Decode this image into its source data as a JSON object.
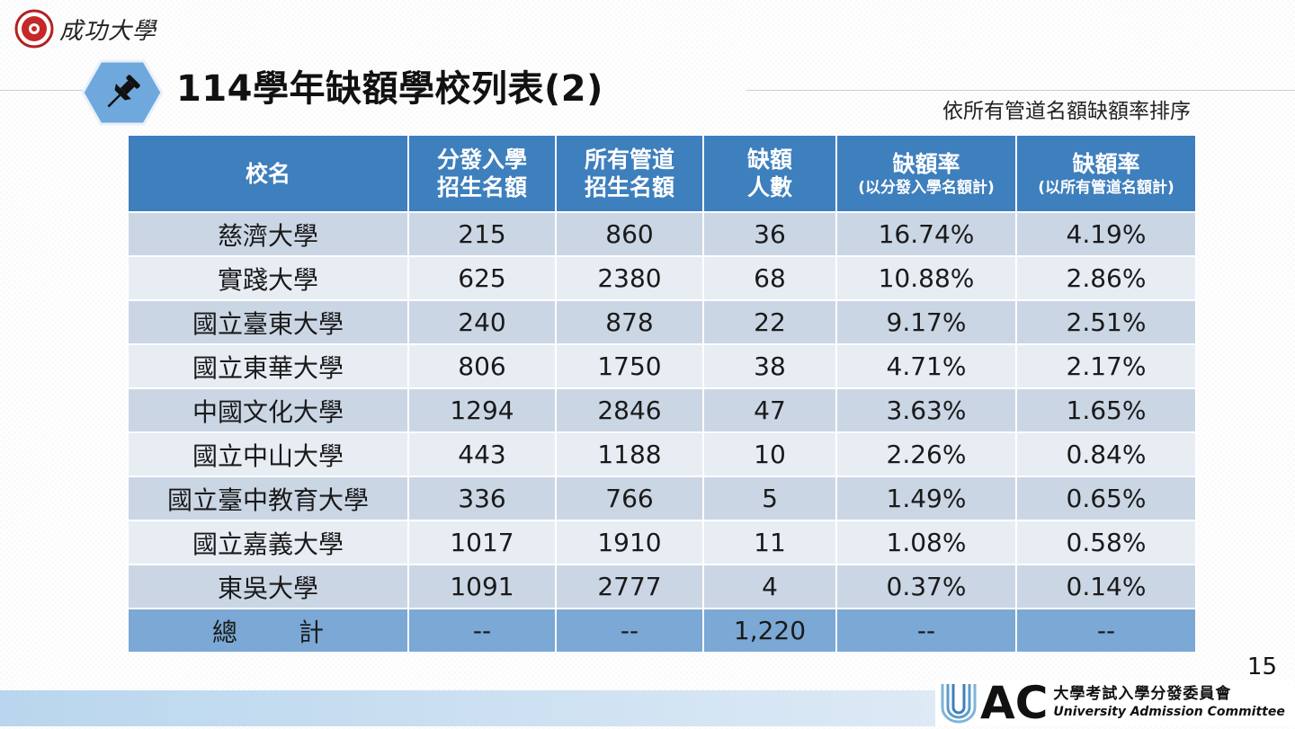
{
  "header": {
    "logo_text": "成功大學",
    "title": "114學年缺額學校列表(2)",
    "subtitle": "依所有管道名額缺額率排序"
  },
  "table": {
    "headers": [
      {
        "line1": "校名",
        "line2": ""
      },
      {
        "line1": "分發入學",
        "line2": "招生名額"
      },
      {
        "line1": "所有管道",
        "line2": "招生名額"
      },
      {
        "line1": "缺額",
        "line2": "人數"
      },
      {
        "line1": "缺額率",
        "line2": "(以分發入學名額計)"
      },
      {
        "line1": "缺額率",
        "line2": "(以所有管道名額計)"
      }
    ],
    "rows": [
      [
        "慈濟大學",
        "215",
        "860",
        "36",
        "16.74%",
        "4.19%"
      ],
      [
        "實踐大學",
        "625",
        "2380",
        "68",
        "10.88%",
        "2.86%"
      ],
      [
        "國立臺東大學",
        "240",
        "878",
        "22",
        "9.17%",
        "2.51%"
      ],
      [
        "國立東華大學",
        "806",
        "1750",
        "38",
        "4.71%",
        "2.17%"
      ],
      [
        "中國文化大學",
        "1294",
        "2846",
        "47",
        "3.63%",
        "1.65%"
      ],
      [
        "國立中山大學",
        "443",
        "1188",
        "10",
        "2.26%",
        "0.84%"
      ],
      [
        "國立臺中教育大學",
        "336",
        "766",
        "5",
        "1.49%",
        "0.65%"
      ],
      [
        "國立嘉義大學",
        "1017",
        "1910",
        "11",
        "1.08%",
        "0.58%"
      ],
      [
        "東吳大學",
        "1091",
        "2777",
        "4",
        "0.37%",
        "0.14%"
      ]
    ],
    "total": {
      "label_left": "總",
      "label_right": "計",
      "cells": [
        "--",
        "--",
        "1,220",
        "--",
        "--"
      ]
    }
  },
  "footer": {
    "page_number": "15",
    "org_letters": "AC",
    "org_name_cn": "大學考試入學分發委員會",
    "org_name_en": "University Admission Committee"
  },
  "colors": {
    "header_blue": "#3e7fbd",
    "row_dark": "#cbd6e5",
    "row_light": "#e8edf4",
    "total_row": "#7ba8d4",
    "badge_blue": "#6fa8dc"
  },
  "icons": [
    "seal-icon",
    "pushpin-icon",
    "uac-logo-icon"
  ]
}
